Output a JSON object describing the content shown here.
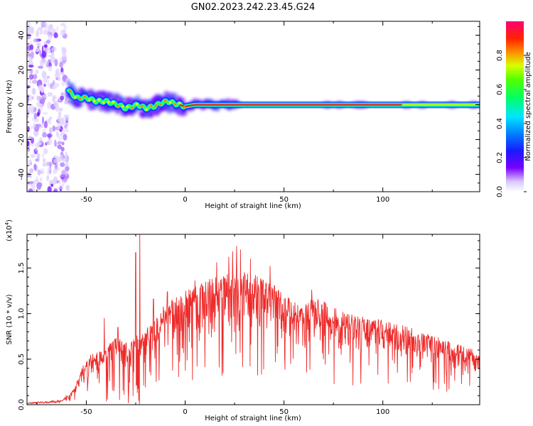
{
  "chart_data": [
    {
      "type": "heatmap",
      "title": "GN02.2023.242.23.45.G24",
      "xlabel": "Height of straight line (km)",
      "ylabel": "Frequency (Hz)",
      "xlim": [
        -80,
        149
      ],
      "ylim": [
        -50,
        48
      ],
      "xticks": [
        "-50",
        "0",
        "50",
        "100"
      ],
      "yticks": [
        "-40",
        "-20",
        "0",
        "20",
        "40"
      ],
      "colorbar": {
        "label": "Normalized spectral amplitude",
        "range": [
          0.0,
          1.0
        ],
        "ticks": [
          "0.0",
          "0.2",
          "0.4",
          "0.6",
          "0.8"
        ],
        "colormap": "rainbow",
        "colors": [
          "#ffffff",
          "#7a00ff",
          "#0044ff",
          "#00e5ff",
          "#00ff33",
          "#d7ff00",
          "#ff2200",
          "#ff0077"
        ]
      },
      "noise_region_km": [
        -80,
        -59
      ],
      "main_line": {
        "points": [
          [
            -59,
            8
          ],
          [
            -55,
            4
          ],
          [
            -50,
            4
          ],
          [
            -45,
            2
          ],
          [
            -40,
            2
          ],
          [
            -37,
            1
          ],
          [
            -34,
            0
          ],
          [
            -30,
            -2
          ],
          [
            -27,
            -1
          ],
          [
            -24,
            0
          ],
          [
            -20,
            -2
          ],
          [
            -16,
            -1
          ],
          [
            -12,
            1
          ],
          [
            -9,
            2
          ],
          [
            -6,
            1
          ],
          [
            -3,
            0
          ],
          [
            0,
            -1
          ],
          [
            5,
            0
          ],
          [
            15,
            0
          ],
          [
            30,
            0
          ],
          [
            70,
            0
          ],
          [
            110,
            0
          ],
          [
            149,
            0
          ]
        ],
        "weak_segment_km": [
          110,
          149
        ]
      }
    },
    {
      "type": "line",
      "xlabel": "Height of straight line (km)",
      "ylabel": "SNR (10 * v/v)",
      "yscale_label": "(x10",
      "yscale_exp": "4",
      "xlim": [
        -80,
        149
      ],
      "ylim": [
        0,
        1.87
      ],
      "xticks": [
        "-50",
        "0",
        "50",
        "100"
      ],
      "yticks": [
        "0.0",
        "0.5",
        "1.0",
        "1.5"
      ],
      "color": "#ee2a2a",
      "envelope": [
        [
          -80,
          0.02
        ],
        [
          -70,
          0.03
        ],
        [
          -62,
          0.04
        ],
        [
          -56,
          0.18
        ],
        [
          -52,
          0.42
        ],
        [
          -48,
          0.55
        ],
        [
          -44,
          0.58
        ],
        [
          -40,
          0.62
        ],
        [
          -36,
          0.78
        ],
        [
          -32,
          0.72
        ],
        [
          -28,
          0.7
        ],
        [
          -25,
          0.76
        ],
        [
          -22,
          0.8
        ],
        [
          -18,
          0.88
        ],
        [
          -14,
          1.02
        ],
        [
          -10,
          1.1
        ],
        [
          -6,
          1.16
        ],
        [
          -2,
          1.22
        ],
        [
          2,
          1.28
        ],
        [
          6,
          1.32
        ],
        [
          10,
          1.36
        ],
        [
          14,
          1.4
        ],
        [
          18,
          1.42
        ],
        [
          22,
          1.44
        ],
        [
          26,
          1.45
        ],
        [
          30,
          1.46
        ],
        [
          34,
          1.44
        ],
        [
          38,
          1.4
        ],
        [
          42,
          1.37
        ],
        [
          46,
          1.3
        ],
        [
          50,
          1.22
        ],
        [
          54,
          1.15
        ],
        [
          58,
          1.1
        ],
        [
          62,
          1.14
        ],
        [
          66,
          1.18
        ],
        [
          70,
          1.14
        ],
        [
          74,
          1.08
        ],
        [
          78,
          1.04
        ],
        [
          82,
          1.01
        ],
        [
          86,
          0.98
        ],
        [
          90,
          0.97
        ],
        [
          95,
          0.95
        ],
        [
          100,
          0.93
        ],
        [
          105,
          0.9
        ],
        [
          110,
          0.87
        ],
        [
          115,
          0.84
        ],
        [
          120,
          0.8
        ],
        [
          125,
          0.76
        ],
        [
          130,
          0.72
        ],
        [
          135,
          0.68
        ],
        [
          140,
          0.65
        ],
        [
          145,
          0.61
        ],
        [
          149,
          0.59
        ]
      ],
      "spikes": [
        [
          -41,
          0.95
        ],
        [
          -34,
          0.85
        ],
        [
          -25,
          1.67
        ],
        [
          -23,
          1.92
        ],
        [
          -16,
          1.16
        ],
        [
          -9,
          1.24
        ],
        [
          5,
          1.36
        ],
        [
          16,
          1.56
        ],
        [
          22,
          1.62
        ],
        [
          24,
          1.68
        ],
        [
          26,
          1.74
        ],
        [
          28,
          1.7
        ],
        [
          33,
          1.6
        ],
        [
          43,
          1.52
        ],
        [
          64,
          1.26
        ]
      ]
    }
  ]
}
